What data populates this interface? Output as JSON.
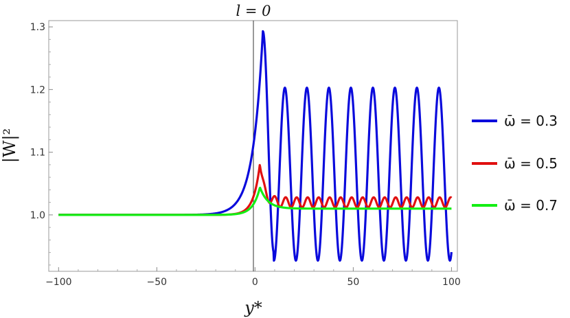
{
  "chart_data": {
    "type": "line",
    "title": "l = 0",
    "xlabel": "y*",
    "ylabel": "|W|²",
    "xlim": [
      -105,
      103
    ],
    "ylim": [
      0.91,
      1.31
    ],
    "xticks": [
      -100,
      -50,
      0,
      50,
      100
    ],
    "xtick_labels": [
      "−100",
      "−50",
      "0",
      "50",
      "100"
    ],
    "yticks": [
      1.0,
      1.1,
      1.2,
      1.3
    ],
    "ytick_labels": [
      "1.0",
      "1.1",
      "1.2",
      "1.3"
    ],
    "grid": false,
    "legend_position": "right",
    "series": [
      {
        "name": "ω̄ = 0.3",
        "color": "#0a0adc",
        "model": {
          "peak_x": 4,
          "peak_y": 1.293,
          "rise_scale": 5.0,
          "mean": 1.065,
          "amplitude": 0.138,
          "period": 11.2,
          "phase_x": 4,
          "first_min_x": 9.6,
          "first_min_y": 0.94
        },
        "points": [
          [
            -100,
            1.0
          ],
          [
            -40,
            1.0
          ],
          [
            -20,
            1.005
          ],
          [
            -10,
            1.04
          ],
          [
            -5,
            1.08
          ],
          [
            0,
            1.17
          ],
          [
            4,
            1.293
          ],
          [
            8,
            1.05
          ],
          [
            9.6,
            0.94
          ],
          [
            16,
            1.2
          ],
          [
            21.5,
            0.93
          ],
          [
            27,
            1.2
          ],
          [
            32.5,
            0.93
          ],
          [
            38,
            1.2
          ],
          [
            43.5,
            0.93
          ],
          [
            49.5,
            1.2
          ],
          [
            55,
            0.93
          ],
          [
            60.5,
            1.2
          ],
          [
            66,
            0.93
          ],
          [
            71.5,
            1.2
          ],
          [
            77,
            0.93
          ],
          [
            82.5,
            1.2
          ],
          [
            88,
            0.93
          ],
          [
            93.5,
            1.2
          ],
          [
            99,
            0.94
          ],
          [
            100,
            0.94
          ]
        ]
      },
      {
        "name": "ω̄ = 0.5",
        "color": "#e01010",
        "model": {
          "peak_x": 2.5,
          "peak_y": 1.082,
          "rise_scale": 3.2,
          "mean": 1.02,
          "amplitude": 0.008,
          "period": 5.6,
          "phase_x": 10
        },
        "points": [
          [
            -100,
            1.0
          ],
          [
            -20,
            1.0
          ],
          [
            -5,
            1.012
          ],
          [
            0,
            1.04
          ],
          [
            2.5,
            1.082
          ],
          [
            5,
            1.04
          ],
          [
            7,
            1.017
          ],
          [
            10,
            1.035
          ],
          [
            13,
            1.013
          ],
          [
            15.5,
            1.028
          ],
          [
            50,
            1.027
          ],
          [
            75,
            1.027
          ],
          [
            100,
            1.028
          ]
        ]
      },
      {
        "name": "ω̄ = 0.7",
        "color": "#14ee14",
        "model": {
          "peak_x": 2.5,
          "peak_y": 1.044,
          "rise_scale": 3.5,
          "tail": 1.01,
          "decay": 4.0
        },
        "points": [
          [
            -100,
            1.0
          ],
          [
            -20,
            1.0
          ],
          [
            -5,
            1.008
          ],
          [
            0,
            1.025
          ],
          [
            2.5,
            1.044
          ],
          [
            6,
            1.02
          ],
          [
            10,
            1.012
          ],
          [
            20,
            1.01
          ],
          [
            50,
            1.01
          ],
          [
            100,
            1.01
          ]
        ]
      }
    ]
  }
}
